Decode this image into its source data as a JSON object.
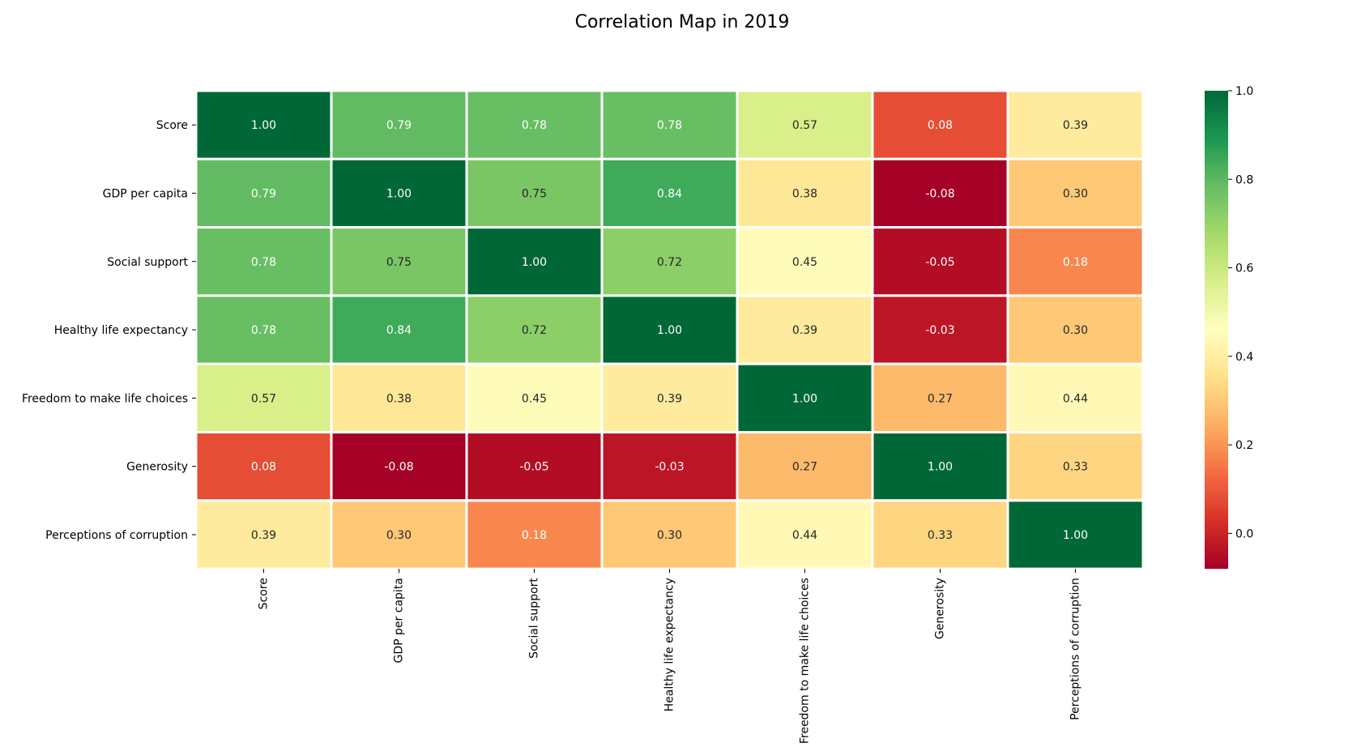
{
  "chart_data": {
    "type": "heatmap",
    "title": "Correlation Map in 2019",
    "x_labels": [
      "Score",
      "GDP per capita",
      "Social support",
      "Healthy life expectancy",
      "Freedom to make life choices",
      "Generosity",
      "Perceptions of corruption"
    ],
    "y_labels": [
      "Score",
      "GDP per capita",
      "Social support",
      "Healthy life expectancy",
      "Freedom to make life choices",
      "Generosity",
      "Perceptions of corruption"
    ],
    "values": [
      [
        1.0,
        0.79,
        0.78,
        0.78,
        0.57,
        0.08,
        0.39
      ],
      [
        0.79,
        1.0,
        0.75,
        0.84,
        0.38,
        -0.08,
        0.3
      ],
      [
        0.78,
        0.75,
        1.0,
        0.72,
        0.45,
        -0.05,
        0.18
      ],
      [
        0.78,
        0.84,
        0.72,
        1.0,
        0.39,
        -0.03,
        0.3
      ],
      [
        0.57,
        0.38,
        0.45,
        0.39,
        1.0,
        0.27,
        0.44
      ],
      [
        0.08,
        -0.08,
        -0.05,
        -0.03,
        0.27,
        1.0,
        0.33
      ],
      [
        0.39,
        0.3,
        0.18,
        0.3,
        0.44,
        0.33,
        1.0
      ]
    ],
    "value_format": "2 decimals",
    "colormap": "RdYlGn",
    "color_range": [
      -0.08,
      1.0
    ],
    "colorbar_ticks": [
      "0.0",
      "0.2",
      "0.4",
      "0.6",
      "0.8",
      "1.0"
    ],
    "colorbar_tick_values": [
      0.0,
      0.2,
      0.4,
      0.6,
      0.8,
      1.0
    ],
    "colorbar_position": "right",
    "cell_border_color": "#ffffff",
    "text_color_dark": "#262626",
    "text_color_light": "#ffffff"
  }
}
